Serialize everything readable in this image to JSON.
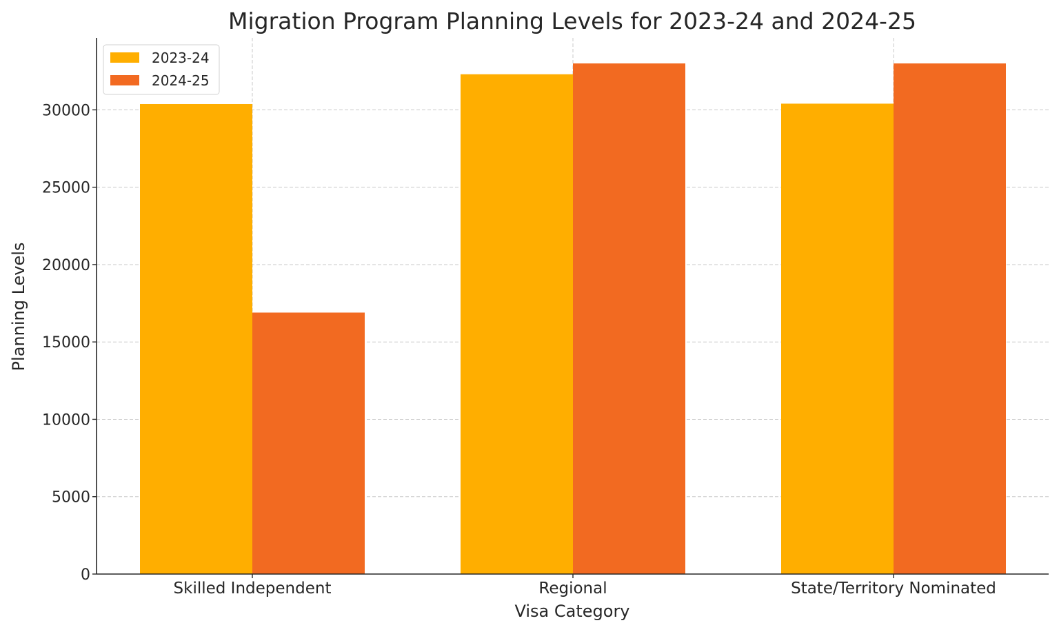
{
  "chart_data": {
    "type": "bar",
    "title": "Migration Program Planning Levels for 2023-24 and 2024-25",
    "xlabel": "Visa Category",
    "ylabel": "Planning Levels",
    "categories": [
      "Skilled Independent",
      "Regional",
      "State/Territory Nominated"
    ],
    "series": [
      {
        "name": "2023-24",
        "values": [
          30375,
          32300,
          30400
        ],
        "color": "#FFAE00"
      },
      {
        "name": "2024-25",
        "values": [
          16900,
          33000,
          33000
        ],
        "color": "#F26A21"
      }
    ],
    "ylim": [
      0,
      34650
    ],
    "yticks": [
      "0",
      "5000",
      "10000",
      "15000",
      "20000",
      "25000",
      "30000"
    ],
    "grid": true,
    "legend": "top-left"
  }
}
